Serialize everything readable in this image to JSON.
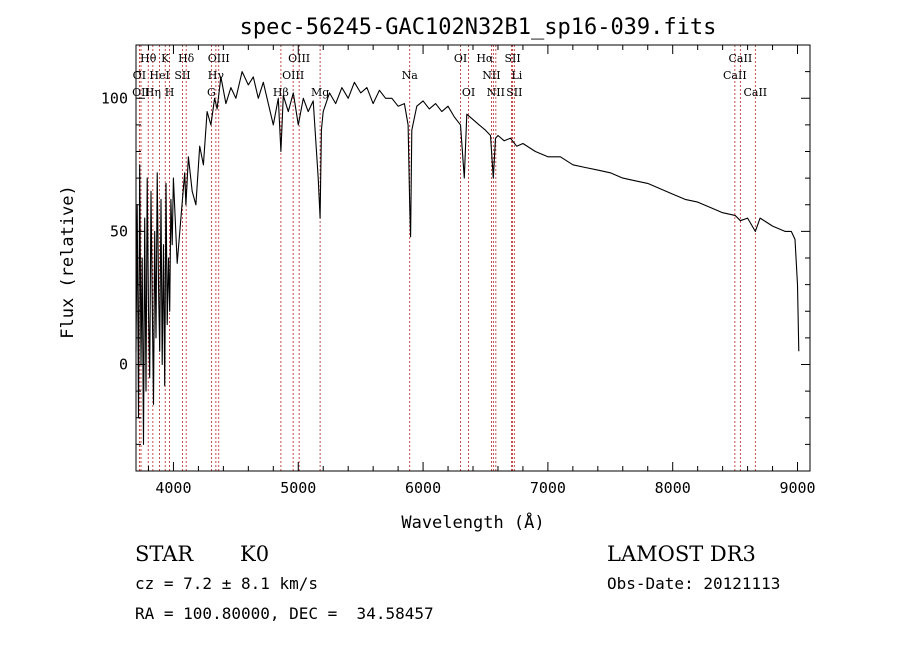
{
  "chart_data": {
    "type": "line",
    "title": "spec-56245-GAC102N32B1_sp16-039.fits",
    "xlabel": "Wavelength (Å)",
    "ylabel": "Flux (relative)",
    "xlim": [
      3700,
      9100
    ],
    "ylim": [
      -40,
      120
    ],
    "xticks": [
      4000,
      5000,
      6000,
      7000,
      8000,
      9000
    ],
    "xtick_labels": [
      "4000",
      "5000",
      "6000",
      "7000",
      "8000",
      "9000"
    ],
    "yticks": [
      0,
      50,
      100
    ],
    "ytick_labels": [
      "0",
      "50",
      "100"
    ],
    "grid": false,
    "series": [
      {
        "name": "spectrum",
        "color": "#000000",
        "x": [
          3700,
          3710,
          3720,
          3730,
          3740,
          3750,
          3760,
          3770,
          3780,
          3790,
          3800,
          3810,
          3820,
          3830,
          3840,
          3850,
          3860,
          3870,
          3880,
          3890,
          3900,
          3910,
          3920,
          3930,
          3940,
          3950,
          3960,
          3970,
          3980,
          3990,
          4000,
          4030,
          4060,
          4090,
          4100,
          4120,
          4150,
          4180,
          4210,
          4240,
          4270,
          4300,
          4330,
          4350,
          4380,
          4420,
          4460,
          4500,
          4550,
          4600,
          4640,
          4680,
          4720,
          4760,
          4800,
          4840,
          4861,
          4880,
          4920,
          4960,
          5000,
          5040,
          5080,
          5120,
          5160,
          5175,
          5185,
          5200,
          5250,
          5300,
          5350,
          5400,
          5450,
          5500,
          5550,
          5600,
          5650,
          5700,
          5750,
          5800,
          5850,
          5880,
          5893,
          5900,
          5910,
          5950,
          6000,
          6050,
          6100,
          6150,
          6200,
          6250,
          6300,
          6330,
          6350,
          6400,
          6450,
          6500,
          6540,
          6563,
          6580,
          6600,
          6650,
          6700,
          6750,
          6800,
          6900,
          7000,
          7100,
          7200,
          7300,
          7400,
          7500,
          7600,
          7700,
          7800,
          7900,
          8000,
          8100,
          8200,
          8300,
          8400,
          8500,
          8542,
          8600,
          8662,
          8700,
          8800,
          8900,
          8950,
          8980,
          9000,
          9010
        ],
        "y": [
          5,
          60,
          -20,
          75,
          0,
          40,
          -30,
          55,
          -10,
          70,
          20,
          -5,
          65,
          25,
          -15,
          50,
          10,
          72,
          30,
          5,
          62,
          0,
          45,
          -8,
          68,
          15,
          40,
          20,
          62,
          45,
          70,
          38,
          55,
          72,
          60,
          78,
          65,
          60,
          82,
          75,
          95,
          90,
          100,
          96,
          108,
          98,
          104,
          100,
          110,
          105,
          108,
          100,
          106,
          98,
          90,
          100,
          80,
          101,
          95,
          102,
          90,
          100,
          95,
          99,
          70,
          55,
          88,
          95,
          102,
          98,
          104,
          100,
          106,
          102,
          104,
          98,
          103,
          100,
          100,
          97,
          98,
          90,
          60,
          48,
          88,
          97,
          99,
          96,
          98,
          95,
          97,
          93,
          90,
          70,
          94,
          92,
          90,
          88,
          86,
          70,
          85,
          86,
          84,
          85,
          82,
          83,
          80,
          78,
          78,
          75,
          74,
          73,
          72,
          70,
          69,
          68,
          66,
          64,
          62,
          61,
          59,
          57,
          56,
          54,
          55,
          50,
          55,
          52,
          50,
          50,
          47,
          30,
          5
        ]
      }
    ],
    "line_labels": [
      {
        "label": "Hθ",
        "x": 3798,
        "row": 1,
        "anchor": "middle"
      },
      {
        "label": "K",
        "x": 3934,
        "row": 1,
        "anchor": "middle"
      },
      {
        "label": "Hδ",
        "x": 4102,
        "row": 1,
        "anchor": "middle"
      },
      {
        "label": "OIII",
        "x": 4363,
        "row": 1,
        "anchor": "middle"
      },
      {
        "label": "OIII",
        "x": 5007,
        "row": 1,
        "anchor": "middle"
      },
      {
        "label": "OI",
        "x": 6300,
        "row": 1,
        "anchor": "middle"
      },
      {
        "label": "Hα",
        "x": 6563,
        "row": 1,
        "anchor": "end"
      },
      {
        "label": "SII",
        "x": 6717,
        "row": 1,
        "anchor": "middle"
      },
      {
        "label": "CaII",
        "x": 8542,
        "row": 1,
        "anchor": "middle"
      },
      {
        "label": "OI",
        "x": 3727,
        "row": 2,
        "anchor": "middle"
      },
      {
        "label": "HeI",
        "x": 3889,
        "row": 2,
        "anchor": "middle"
      },
      {
        "label": "SII",
        "x": 4072,
        "row": 2,
        "anchor": "middle"
      },
      {
        "label": "Hγ",
        "x": 4340,
        "row": 2,
        "anchor": "middle"
      },
      {
        "label": "OIII",
        "x": 4959,
        "row": 2,
        "anchor": "middle"
      },
      {
        "label": "Na",
        "x": 5893,
        "row": 2,
        "anchor": "middle"
      },
      {
        "label": "NII",
        "x": 6548,
        "row": 2,
        "anchor": "middle"
      },
      {
        "label": "Li",
        "x": 6708,
        "row": 2,
        "anchor": "start"
      },
      {
        "label": "CaII",
        "x": 8498,
        "row": 2,
        "anchor": "middle"
      },
      {
        "label": "OII",
        "x": 3740,
        "row": 3,
        "anchor": "middle"
      },
      {
        "label": "Hη",
        "x": 3835,
        "row": 3,
        "anchor": "middle"
      },
      {
        "label": "H",
        "x": 3969,
        "row": 3,
        "anchor": "middle"
      },
      {
        "label": "G",
        "x": 4304,
        "row": 3,
        "anchor": "middle"
      },
      {
        "label": "Hβ",
        "x": 4861,
        "row": 3,
        "anchor": "middle"
      },
      {
        "label": "Mg",
        "x": 5175,
        "row": 3,
        "anchor": "middle"
      },
      {
        "label": "OI",
        "x": 6364,
        "row": 3,
        "anchor": "middle"
      },
      {
        "label": "NII",
        "x": 6583,
        "row": 3,
        "anchor": "middle"
      },
      {
        "label": "SII",
        "x": 6731,
        "row": 3,
        "anchor": "middle"
      },
      {
        "label": "CaII",
        "x": 8662,
        "row": 3,
        "anchor": "middle"
      }
    ],
    "line_marker_color": "#b22222",
    "line_markers": [
      3727,
      3740,
      3798,
      3835,
      3889,
      3934,
      3969,
      4072,
      4102,
      4304,
      4340,
      4363,
      4861,
      4959,
      5007,
      5175,
      5893,
      6300,
      6364,
      6548,
      6563,
      6583,
      6708,
      6717,
      6731,
      8498,
      8542,
      8662
    ]
  },
  "info": {
    "class": "STAR",
    "subclass": "K0",
    "redshift": "cz = 7.2 ± 8.1 km/s",
    "coords": "RA = 100.80000, DEC =  34.58457",
    "survey": "LAMOST DR3",
    "obs_date": "Obs-Date: 20121113"
  }
}
